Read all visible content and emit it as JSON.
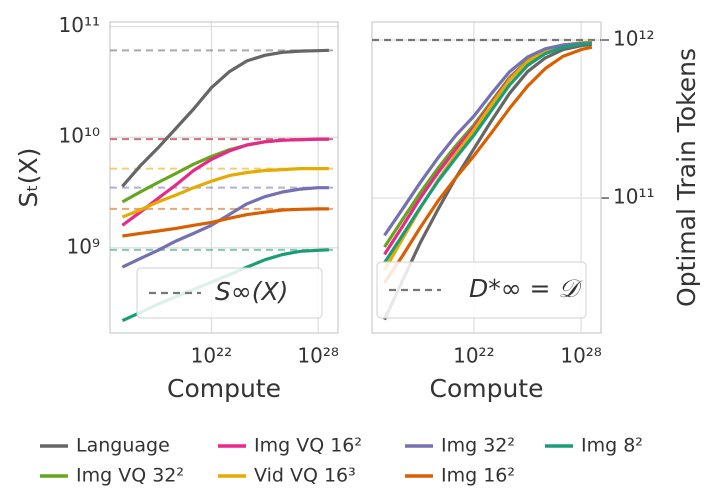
{
  "chart_data": [
    {
      "type": "line",
      "xlog": true,
      "ylog": true,
      "grid": true,
      "ylabel": "Sₜ(X)",
      "xlabel": "Compute",
      "legend_label": "S∞(X)",
      "x": [
        1e+17,
        1e+18,
        1e+19,
        1e+20,
        1e+21,
        1e+22,
        1e+23,
        1e+24,
        1e+25,
        1e+26,
        1e+27,
        1e+28,
        4e+28
      ],
      "xlim": [
        2e+16,
        1.3e+29
      ],
      "xticks": [
        {
          "value": 1e+22,
          "label": "10²²"
        },
        {
          "value": 1e+28,
          "label": "10²⁸"
        }
      ],
      "ylim": [
        170000000.0,
        110000000000.0
      ],
      "yticks": [
        {
          "value": 1000000000.0,
          "label": "10⁹"
        },
        {
          "value": 10000000000.0,
          "label": "10¹⁰"
        },
        {
          "value": 100000000000.0,
          "label": "10¹¹"
        }
      ],
      "series": [
        {
          "name": "Language",
          "color": "#666666",
          "asymptote": 61000000000.0,
          "values": [
            3600000000.0,
            5500000000.0,
            8000000000.0,
            12000000000.0,
            18000000000.0,
            28000000000.0,
            39000000000.0,
            49000000000.0,
            55000000000.0,
            58500000000.0,
            60000000000.0,
            60500000000.0,
            61000000000.0
          ]
        },
        {
          "name": "Img VQ 32²",
          "color": "#66a61e",
          "asymptote": 9600000000.0,
          "values": [
            2600000000.0,
            3200000000.0,
            3900000000.0,
            4700000000.0,
            5700000000.0,
            6700000000.0,
            7700000000.0,
            8500000000.0,
            9100000000.0,
            9400000000.0,
            9500000000.0,
            9600000000.0,
            9600000000.0
          ]
        },
        {
          "name": "Img VQ 16²",
          "color": "#e7298a",
          "asymptote": 9600000000.0,
          "values": [
            1600000000.0,
            2100000000.0,
            2800000000.0,
            3700000000.0,
            5000000000.0,
            6300000000.0,
            7500000000.0,
            8500000000.0,
            9100000000.0,
            9400000000.0,
            9500000000.0,
            9600000000.0,
            9600000000.0
          ]
        },
        {
          "name": "Vid VQ 16³",
          "color": "#e6ab02",
          "asymptote": 5200000000.0,
          "values": [
            1900000000.0,
            2200000000.0,
            2600000000.0,
            3000000000.0,
            3500000000.0,
            4000000000.0,
            4500000000.0,
            4800000000.0,
            5000000000.0,
            5100000000.0,
            5200000000.0,
            5200000000.0,
            5200000000.0
          ]
        },
        {
          "name": "Img 32²",
          "color": "#7570b3",
          "asymptote": 3500000000.0,
          "values": [
            670000000.0,
            800000000.0,
            950000000.0,
            1150000000.0,
            1350000000.0,
            1600000000.0,
            2000000000.0,
            2500000000.0,
            2900000000.0,
            3200000000.0,
            3400000000.0,
            3500000000.0,
            3500000000.0
          ]
        },
        {
          "name": "Img 16²",
          "color": "#d95f02",
          "asymptote": 2250000000.0,
          "values": [
            1280000000.0,
            1350000000.0,
            1420000000.0,
            1500000000.0,
            1600000000.0,
            1700000000.0,
            1850000000.0,
            2000000000.0,
            2100000000.0,
            2200000000.0,
            2230000000.0,
            2250000000.0,
            2250000000.0
          ]
        },
        {
          "name": "Img 8²",
          "color": "#1b9e77",
          "asymptote": 960000000.0,
          "values": [
            220000000.0,
            260000000.0,
            310000000.0,
            360000000.0,
            420000000.0,
            490000000.0,
            570000000.0,
            670000000.0,
            780000000.0,
            870000000.0,
            930000000.0,
            950000000.0,
            960000000.0
          ]
        }
      ]
    },
    {
      "type": "line",
      "xlog": true,
      "ylog": true,
      "grid": true,
      "ylabel": "Optimal Train Tokens",
      "xlabel": "Compute",
      "hline": 1000000000000.0,
      "hline_label": "D*∞ = 𝒟",
      "x": [
        1e+17,
        1e+18,
        1e+19,
        1e+20,
        1e+21,
        1e+22,
        1e+23,
        1e+24,
        1e+25,
        1e+26,
        1e+27,
        1e+28,
        4e+28
      ],
      "xlim": [
        2e+16,
        1.3e+29
      ],
      "xticks": [
        {
          "value": 1e+22,
          "label": "10²²"
        },
        {
          "value": 1e+28,
          "label": "10²⁸"
        }
      ],
      "ylim": [
        14000000000.0,
        1300000000000.0
      ],
      "yticks": [
        {
          "value": 100000000000.0,
          "label": "10¹¹"
        },
        {
          "value": 1000000000000.0,
          "label": "10¹²"
        }
      ],
      "series": [
        {
          "name": "Language",
          "color": "#666666",
          "values": [
            17000000000.0,
            30000000000.0,
            52000000000.0,
            85000000000.0,
            135000000000.0,
            205000000000.0,
            310000000000.0,
            460000000000.0,
            630000000000.0,
            770000000000.0,
            870000000000.0,
            920000000000.0,
            940000000000.0
          ]
        },
        {
          "name": "Img VQ 32²",
          "color": "#66a61e",
          "values": [
            49000000000.0,
            73000000000.0,
            108000000000.0,
            155000000000.0,
            215000000000.0,
            290000000000.0,
            410000000000.0,
            580000000000.0,
            740000000000.0,
            860000000000.0,
            920000000000.0,
            950000000000.0,
            960000000000.0
          ]
        },
        {
          "name": "Img VQ 16²",
          "color": "#e7298a",
          "values": [
            44000000000.0,
            66000000000.0,
            100000000000.0,
            145000000000.0,
            205000000000.0,
            280000000000.0,
            400000000000.0,
            570000000000.0,
            730000000000.0,
            850000000000.0,
            920000000000.0,
            950000000000.0,
            960000000000.0
          ]
        },
        {
          "name": "Vid VQ 16³",
          "color": "#e6ab02",
          "values": [
            35000000000.0,
            55000000000.0,
            86000000000.0,
            130000000000.0,
            190000000000.0,
            270000000000.0,
            390000000000.0,
            560000000000.0,
            730000000000.0,
            860000000000.0,
            930000000000.0,
            960000000000.0,
            970000000000.0
          ]
        },
        {
          "name": "Img 32²",
          "color": "#7570b3",
          "values": [
            58000000000.0,
            85000000000.0,
            125000000000.0,
            180000000000.0,
            250000000000.0,
            330000000000.0,
            460000000000.0,
            630000000000.0,
            780000000000.0,
            880000000000.0,
            930000000000.0,
            950000000000.0,
            960000000000.0
          ]
        },
        {
          "name": "Img 16²",
          "color": "#d95f02",
          "values": [
            29000000000.0,
            43000000000.0,
            65000000000.0,
            96000000000.0,
            135000000000.0,
            185000000000.0,
            260000000000.0,
            370000000000.0,
            510000000000.0,
            660000000000.0,
            790000000000.0,
            870000000000.0,
            900000000000.0
          ]
        },
        {
          "name": "Img 8²",
          "color": "#1b9e77",
          "values": [
            39000000000.0,
            58000000000.0,
            87000000000.0,
            128000000000.0,
            180000000000.0,
            250000000000.0,
            360000000000.0,
            520000000000.0,
            690000000000.0,
            820000000000.0,
            900000000000.0,
            940000000000.0,
            950000000000.0
          ]
        }
      ]
    }
  ]
}
